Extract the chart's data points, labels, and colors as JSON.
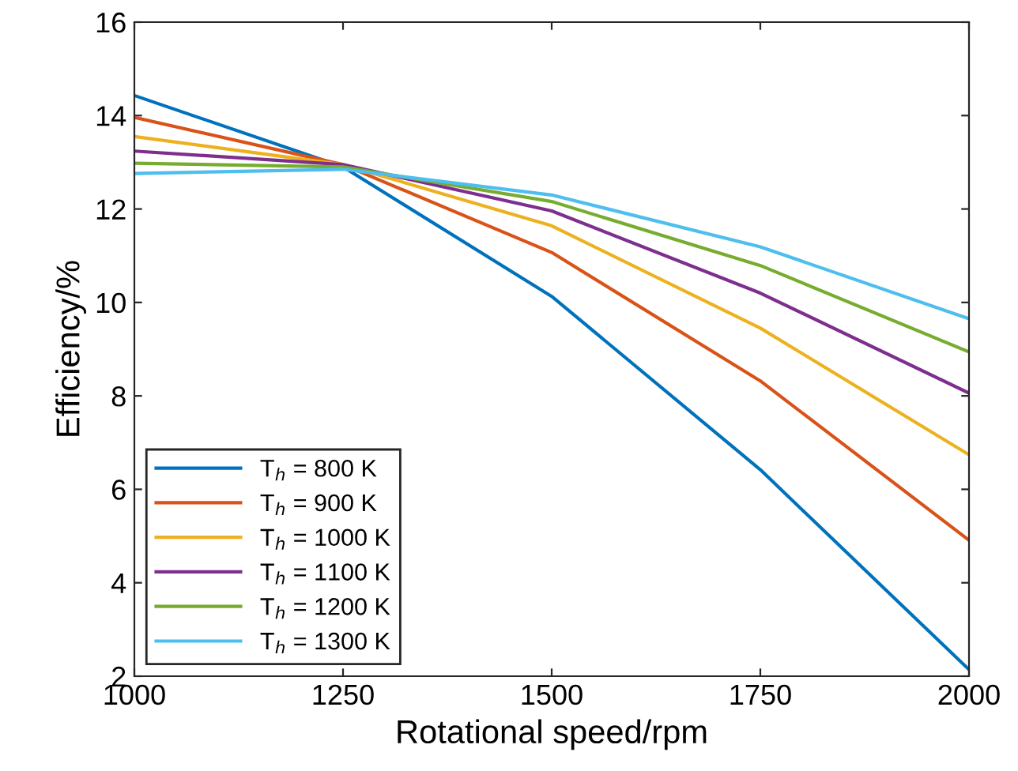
{
  "chart_data": {
    "type": "line",
    "xlabel": "Rotational speed/rpm",
    "ylabel": "Efficiency/%",
    "x": [
      1000,
      1250,
      1500,
      1750,
      2000
    ],
    "series": [
      {
        "name": "T$_{h}$ = 800 K",
        "color": "#0072bd",
        "values": [
          14.43,
          12.9,
          10.13,
          6.42,
          2.14
        ]
      },
      {
        "name": "T$_{h}$ = 900 K",
        "color": "#d95319",
        "values": [
          13.96,
          12.95,
          11.07,
          8.32,
          4.91
        ]
      },
      {
        "name": "T$_{h}$ = 1000 K",
        "color": "#edb120",
        "values": [
          13.55,
          12.95,
          11.64,
          9.45,
          6.74
        ]
      },
      {
        "name": "T$_{h}$ = 1100 K",
        "color": "#7e2f8e",
        "values": [
          13.24,
          12.95,
          11.96,
          10.2,
          8.06
        ]
      },
      {
        "name": "T$_{h}$ = 1200 K",
        "color": "#77ac30",
        "values": [
          12.98,
          12.9,
          12.16,
          10.79,
          8.94
        ]
      },
      {
        "name": "T$_{h}$ = 1300 K",
        "color": "#4dbeee",
        "values": [
          12.76,
          12.85,
          12.3,
          11.19,
          9.65
        ]
      }
    ],
    "xlim": [
      1000,
      2000
    ],
    "xticks": [
      1000,
      1250,
      1500,
      1750,
      2000
    ],
    "ylim": [
      2,
      16
    ],
    "yticks": [
      2,
      4,
      6,
      8,
      10,
      12,
      14,
      16
    ],
    "grid": false,
    "legend": "bottom left",
    "marker": "none",
    "line_style": "solid"
  }
}
